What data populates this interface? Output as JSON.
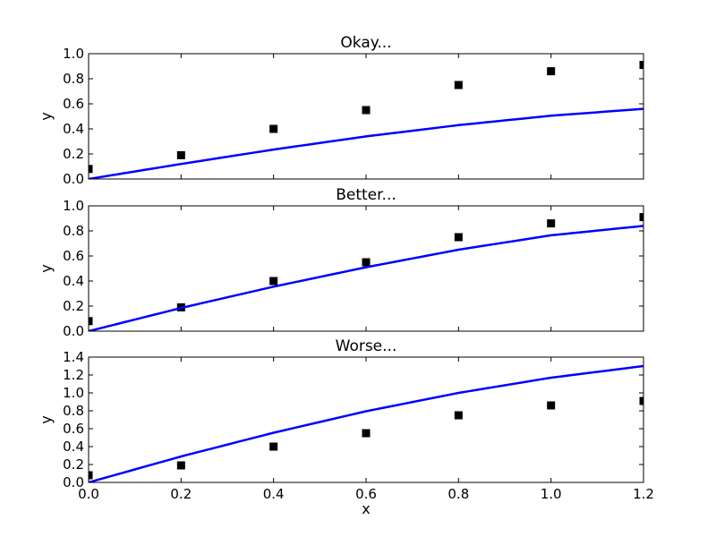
{
  "chart_data": [
    {
      "type": "scatter",
      "title": "Okay...",
      "xlabel": "",
      "ylabel": "y",
      "xlim": [
        0.0,
        1.2
      ],
      "ylim": [
        0.0,
        1.0
      ],
      "yticks": [
        "0.0",
        "0.2",
        "0.4",
        "0.6",
        "0.8",
        "1.0"
      ],
      "xticks": [],
      "series": [
        {
          "kind": "markers",
          "marker": "square",
          "color": "#000000",
          "x": [
            0.0,
            0.2,
            0.4,
            0.6,
            0.8,
            1.0,
            1.2
          ],
          "y": [
            0.08,
            0.19,
            0.4,
            0.55,
            0.75,
            0.86,
            0.91
          ]
        },
        {
          "kind": "line",
          "color": "#0000ff",
          "x": [
            0.0,
            0.2,
            0.4,
            0.6,
            0.8,
            1.0,
            1.2
          ],
          "y": [
            0.0,
            0.12,
            0.235,
            0.34,
            0.43,
            0.505,
            0.56
          ]
        }
      ]
    },
    {
      "type": "scatter",
      "title": "Better...",
      "xlabel": "",
      "ylabel": "y",
      "xlim": [
        0.0,
        1.2
      ],
      "ylim": [
        0.0,
        1.0
      ],
      "yticks": [
        "0.0",
        "0.2",
        "0.4",
        "0.6",
        "0.8",
        "1.0"
      ],
      "xticks": [],
      "series": [
        {
          "kind": "markers",
          "marker": "square",
          "color": "#000000",
          "x": [
            0.0,
            0.2,
            0.4,
            0.6,
            0.8,
            1.0,
            1.2
          ],
          "y": [
            0.08,
            0.19,
            0.4,
            0.55,
            0.75,
            0.86,
            0.91
          ]
        },
        {
          "kind": "line",
          "color": "#0000ff",
          "x": [
            0.0,
            0.2,
            0.4,
            0.6,
            0.8,
            1.0,
            1.2
          ],
          "y": [
            0.0,
            0.185,
            0.355,
            0.51,
            0.65,
            0.765,
            0.84
          ]
        }
      ]
    },
    {
      "type": "scatter",
      "title": "Worse...",
      "xlabel": "x",
      "ylabel": "y",
      "xlim": [
        0.0,
        1.2
      ],
      "ylim": [
        0.0,
        1.4
      ],
      "yticks": [
        "0.0",
        "0.2",
        "0.4",
        "0.6",
        "0.8",
        "1.0",
        "1.2",
        "1.4"
      ],
      "xticks": [
        "0.0",
        "0.2",
        "0.4",
        "0.6",
        "0.8",
        "1.0",
        "1.2"
      ],
      "series": [
        {
          "kind": "markers",
          "marker": "square",
          "color": "#000000",
          "x": [
            0.0,
            0.2,
            0.4,
            0.6,
            0.8,
            1.0,
            1.2
          ],
          "y": [
            0.08,
            0.19,
            0.4,
            0.55,
            0.75,
            0.86,
            0.91
          ]
        },
        {
          "kind": "line",
          "color": "#0000ff",
          "x": [
            0.0,
            0.2,
            0.4,
            0.6,
            0.8,
            1.0,
            1.2
          ],
          "y": [
            0.0,
            0.29,
            0.555,
            0.795,
            1.0,
            1.17,
            1.3
          ]
        }
      ]
    }
  ]
}
